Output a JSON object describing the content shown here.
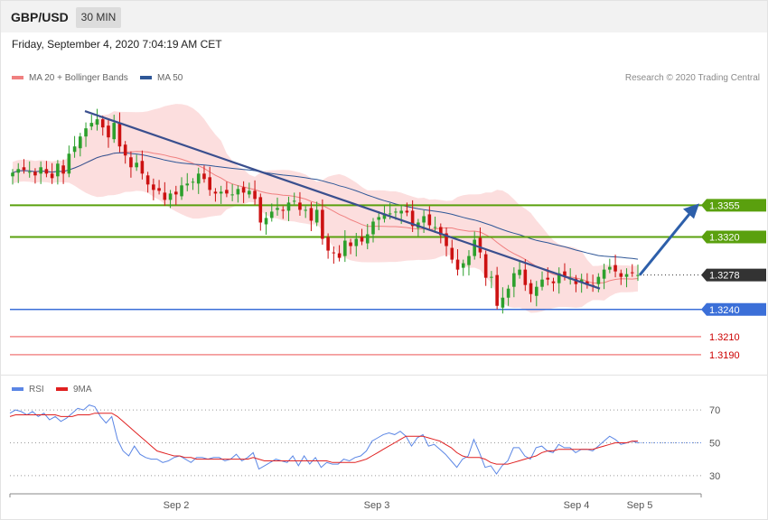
{
  "header": {
    "symbol": "GBP/USD",
    "timeframe": "30 MIN"
  },
  "date_text": "Friday, September 4, 2020 7:04:19 AM CET",
  "legend": {
    "ma20_label": "MA 20 + Bollinger Bands",
    "ma50_label": "MA 50",
    "rsi_label": "RSI",
    "ma9_label": "9MA"
  },
  "credit": "Research © 2020 Trading Central",
  "colors": {
    "up_candle": "#2ca02c",
    "down_candle": "#cc1111",
    "bollinger": "#fcd8d8",
    "ma20": "#f08080",
    "ma50": "#2f5797",
    "resistance": "#5aa00e",
    "support": "#3b6fd8",
    "minor_level": "#f28b8b",
    "current": "#333333",
    "rsi": "#5b86e5",
    "rsi_ma": "#e02020"
  },
  "chart_data": [
    {
      "type": "candlestick",
      "title": "GBP/USD",
      "timeframe": "30 MIN",
      "x_tick_labels": [
        "Sep 2",
        "Sep 3",
        "Sep 4",
        "Sep 5"
      ],
      "ylim": [
        1.3168,
        1.3487
      ],
      "levels": [
        {
          "label": "1.3355",
          "value": 1.3355,
          "kind": "resistance"
        },
        {
          "label": "1.3320",
          "value": 1.332,
          "kind": "resistance"
        },
        {
          "label": "1.3278",
          "value": 1.3278,
          "kind": "current"
        },
        {
          "label": "1.3240",
          "value": 1.324,
          "kind": "support"
        },
        {
          "label": "1.3210",
          "value": 1.321,
          "kind": "minor"
        },
        {
          "label": "1.3190",
          "value": 1.319,
          "kind": "minor"
        }
      ],
      "close_approx": [
        1.3391,
        1.3395,
        1.3394,
        1.3392,
        1.3388,
        1.3397,
        1.339,
        1.3385,
        1.3401,
        1.339,
        1.3412,
        1.342,
        1.3431,
        1.344,
        1.3446,
        1.345,
        1.3441,
        1.343,
        1.3446,
        1.342,
        1.341,
        1.3397,
        1.3402,
        1.339,
        1.3378,
        1.3372,
        1.3371,
        1.3361,
        1.3368,
        1.3367,
        1.3377,
        1.3379,
        1.3381,
        1.339,
        1.3384,
        1.3372,
        1.3368,
        1.337,
        1.3368,
        1.3367,
        1.3373,
        1.3369,
        1.3371,
        1.3362,
        1.3336,
        1.3341,
        1.3348,
        1.3352,
        1.3349,
        1.3358,
        1.336,
        1.335,
        1.335,
        1.3338,
        1.335,
        1.3318,
        1.3305,
        1.3302,
        1.3297,
        1.3316,
        1.331,
        1.3318,
        1.3315,
        1.3323,
        1.3337,
        1.3342,
        1.3346,
        1.3346,
        1.3348,
        1.3349,
        1.3347,
        1.3332,
        1.3336,
        1.3343,
        1.3333,
        1.3331,
        1.3322,
        1.331,
        1.3295,
        1.3284,
        1.3291,
        1.3299,
        1.3317,
        1.3303,
        1.3275,
        1.3276,
        1.3244,
        1.3253,
        1.3263,
        1.328,
        1.3284,
        1.3267,
        1.3257,
        1.3265,
        1.3273,
        1.3273,
        1.3269,
        1.328,
        1.3276,
        1.3274,
        1.3268,
        1.3273,
        1.3267,
        1.3266,
        1.3276,
        1.3284,
        1.3287,
        1.3282,
        1.3276,
        1.3279,
        1.328,
        1.3278
      ]
    },
    {
      "type": "line",
      "title": "RSI",
      "series": [
        {
          "name": "RSI",
          "values": [
            68,
            70,
            69,
            67,
            69,
            66,
            68,
            64,
            66,
            63,
            65,
            68,
            71,
            70,
            73,
            72,
            66,
            62,
            66,
            52,
            45,
            42,
            48,
            43,
            41,
            40,
            40,
            38,
            39,
            41,
            42,
            40,
            38,
            41,
            41,
            40,
            41,
            41,
            39,
            40,
            43,
            39,
            41,
            44,
            34,
            36,
            38,
            40,
            39,
            38,
            42,
            36,
            42,
            37,
            41,
            35,
            38,
            37,
            37,
            40,
            39,
            41,
            42,
            45,
            51,
            53,
            55,
            56,
            55,
            57,
            54,
            48,
            53,
            55,
            48,
            49,
            46,
            43,
            39,
            35,
            40,
            42,
            52,
            44,
            35,
            36,
            31,
            36,
            39,
            47,
            47,
            42,
            40,
            47,
            48,
            45,
            44,
            49,
            47,
            47,
            44,
            46,
            46,
            45,
            48,
            51,
            54,
            52,
            49,
            50,
            51,
            50
          ]
        },
        {
          "name": "9MA",
          "values": [
            66,
            67,
            67,
            67,
            67,
            67,
            67,
            67,
            67,
            66,
            66,
            66,
            67,
            67,
            67,
            68,
            68,
            68,
            68,
            66,
            63,
            60,
            57,
            54,
            51,
            48,
            45,
            44,
            43,
            42,
            42,
            41,
            41,
            40,
            40,
            40,
            40,
            40,
            40,
            40,
            40,
            40,
            40,
            41,
            40,
            39,
            39,
            39,
            39,
            39,
            39,
            39,
            39,
            39,
            39,
            39,
            39,
            38,
            38,
            38,
            38,
            38,
            39,
            40,
            42,
            44,
            46,
            48,
            50,
            52,
            54,
            54,
            54,
            54,
            53,
            52,
            51,
            49,
            47,
            44,
            42,
            41,
            41,
            41,
            40,
            38,
            37,
            37,
            37,
            38,
            39,
            40,
            41,
            42,
            44,
            45,
            45,
            46,
            46,
            46,
            46,
            46,
            46,
            46,
            47,
            48,
            49,
            50,
            50,
            50,
            51,
            51
          ]
        }
      ],
      "y_ticks": [
        70,
        50,
        30
      ],
      "ylim": [
        20,
        75
      ],
      "grid": true
    }
  ]
}
